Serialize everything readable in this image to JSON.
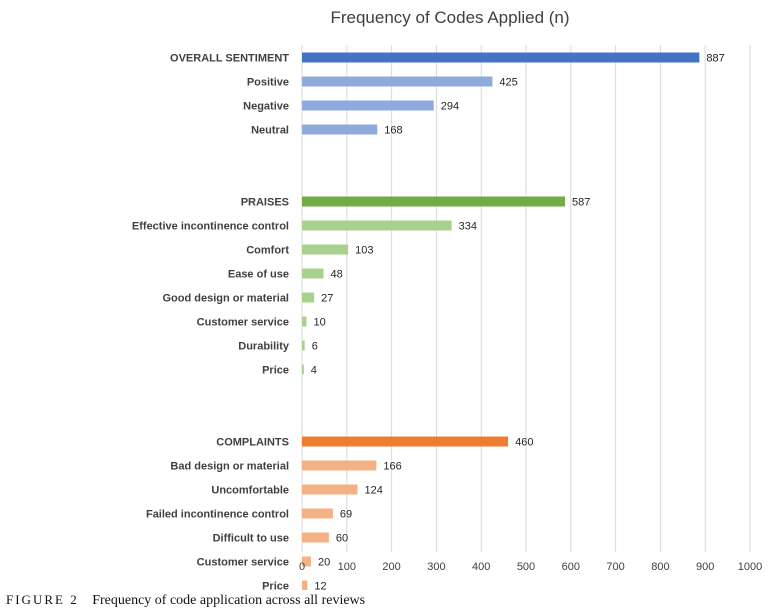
{
  "chart_data": {
    "type": "bar",
    "orientation": "horizontal",
    "title": "Frequency of Codes Applied (n)",
    "xlim": [
      0,
      1000
    ],
    "xticks": [
      0,
      100,
      200,
      300,
      400,
      500,
      600,
      700,
      800,
      900,
      1000
    ],
    "grid": "vertical",
    "colors": {
      "sentiment_main": "#4472C4",
      "sentiment_sub": "#8FAADC",
      "praises_main": "#70AD47",
      "praises_sub": "#A9D18E",
      "complaints_main": "#ED7D31",
      "complaints_sub": "#F4B183"
    },
    "groups": [
      {
        "color_main": "#4472C4",
        "color_sub": "#8FAADC",
        "items": [
          {
            "label": "OVERALL SENTIMENT",
            "value": 887,
            "main": true
          },
          {
            "label": "Positive",
            "value": 425,
            "main": false
          },
          {
            "label": "Negative",
            "value": 294,
            "main": false
          },
          {
            "label": "Neutral",
            "value": 168,
            "main": false
          }
        ]
      },
      {
        "color_main": "#70AD47",
        "color_sub": "#A9D18E",
        "items": [
          {
            "label": "PRAISES",
            "value": 587,
            "main": true
          },
          {
            "label": "Effective incontinence control",
            "value": 334,
            "main": false
          },
          {
            "label": "Comfort",
            "value": 103,
            "main": false
          },
          {
            "label": "Ease of use",
            "value": 48,
            "main": false
          },
          {
            "label": "Good design or material",
            "value": 27,
            "main": false
          },
          {
            "label": "Customer service",
            "value": 10,
            "main": false
          },
          {
            "label": "Durability",
            "value": 6,
            "main": false
          },
          {
            "label": "Price",
            "value": 4,
            "main": false
          }
        ]
      },
      {
        "color_main": "#ED7D31",
        "color_sub": "#F4B183",
        "items": [
          {
            "label": "COMPLAINTS",
            "value": 460,
            "main": true
          },
          {
            "label": "Bad design or material",
            "value": 166,
            "main": false
          },
          {
            "label": "Uncomfortable",
            "value": 124,
            "main": false
          },
          {
            "label": "Failed incontinence control",
            "value": 69,
            "main": false
          },
          {
            "label": "Difficult to use",
            "value": 60,
            "main": false
          },
          {
            "label": "Customer service",
            "value": 20,
            "main": false
          },
          {
            "label": "Price",
            "value": 12,
            "main": false
          }
        ]
      }
    ]
  },
  "caption": {
    "figure_label": "FIGURE 2",
    "text": "Frequency of code application across all reviews"
  }
}
